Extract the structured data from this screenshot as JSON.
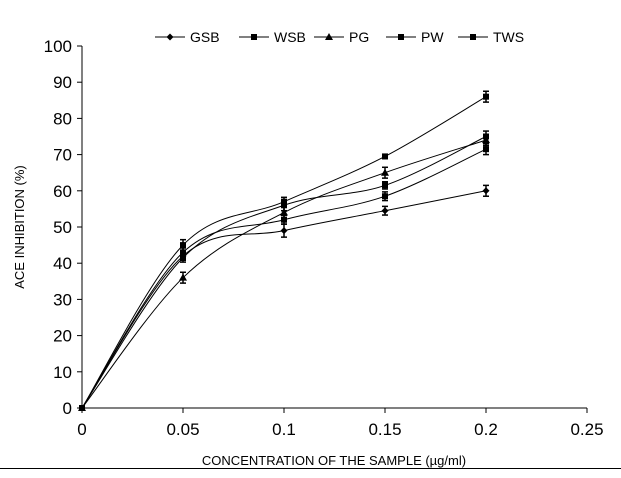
{
  "chart_data": {
    "type": "line",
    "title": "",
    "xlabel": "CONCENTRATION OF THE SAMPLE (µg/ml)",
    "ylabel": "ACE INHIBITION (%)",
    "xlim": [
      0,
      0.25
    ],
    "ylim": [
      0,
      100
    ],
    "xticks": [
      "0",
      "0.05",
      "0.1",
      "0.15",
      "0.2",
      "0.25"
    ],
    "yticks": [
      "0",
      "10",
      "20",
      "30",
      "40",
      "50",
      "60",
      "70",
      "80",
      "90",
      "100"
    ],
    "grid": false,
    "legend_position": "top",
    "smooth": true,
    "x": [
      0,
      0.05,
      0.1,
      0.15,
      0.2
    ],
    "series": [
      {
        "name": "GSB",
        "marker": "diamond",
        "values": [
          0,
          42,
          49,
          54.5,
          60
        ],
        "errors": [
          0,
          1.2,
          1.8,
          1.2,
          1.5
        ]
      },
      {
        "name": "WSB",
        "marker": "square",
        "values": [
          0,
          43,
          52,
          58.5,
          71.5
        ],
        "errors": [
          0,
          1.2,
          1.2,
          1.2,
          1.5
        ]
      },
      {
        "name": "PG",
        "marker": "triangle",
        "values": [
          0,
          36,
          54,
          65,
          74
        ],
        "errors": [
          0,
          1.5,
          1.5,
          1.5,
          1.5
        ]
      },
      {
        "name": "PW",
        "marker": "square",
        "values": [
          0,
          45,
          57,
          69.5,
          86
        ],
        "errors": [
          0,
          1.5,
          1.2,
          0.6,
          1.5
        ]
      },
      {
        "name": "TWS",
        "marker": "square",
        "values": [
          0,
          41.5,
          56,
          61.5,
          75
        ],
        "errors": [
          0,
          1.2,
          1.5,
          1.0,
          1.5
        ]
      }
    ]
  }
}
